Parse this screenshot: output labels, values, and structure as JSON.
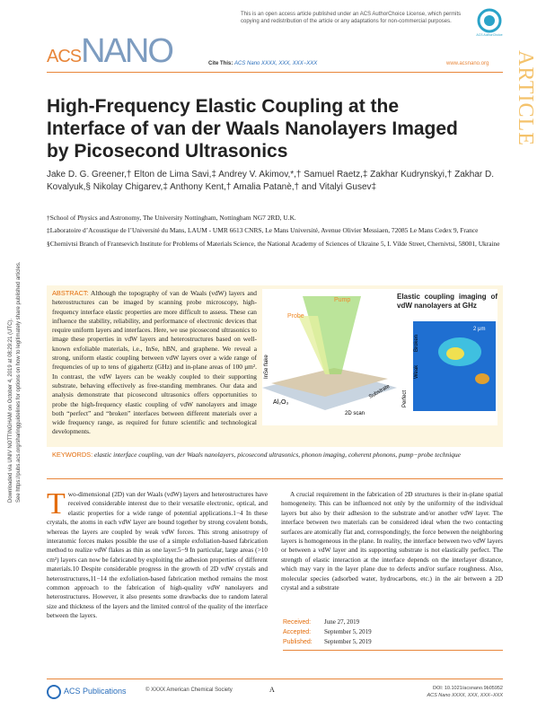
{
  "header": {
    "license_notice": "This is an open access article published under an ACS AuthorChoice License, which permits copying and redistribution of the article or any adaptations for non-commercial purposes.",
    "journal_logo_a": "ACS",
    "journal_logo_b": "NANO",
    "cite_label": "Cite This:",
    "cite": "ACS Nano XXXX, XXX, XXX−XXX",
    "website": "www.acsnano.org",
    "section": "ARTICLE",
    "badge": "ACS AuthorChoice"
  },
  "sidebar": {
    "download": "Downloaded via UNIV NOTTINGHAM on October 4, 2019 at 08:29:21 (UTC).",
    "share": "See https://pubs.acs.org/sharingguidelines for options on how to legitimately share published articles."
  },
  "article": {
    "title": "High-Frequency Elastic Coupling at the Interface of van der Waals Nanolayers Imaged by Picosecond Ultrasonics",
    "authors": "Jake D. G. Greener,† Elton de Lima Savi,‡ Andrey V. Akimov,*,† Samuel Raetz,‡ Zakhar Kudrynskyi,† Zakhar D. Kovalyuk,§ Nikolay Chigarev,‡ Anthony Kent,† Amalia Patanè,† and Vitalyi Gusev‡",
    "affiliations": [
      "†School of Physics and Astronomy, The University Nottingham, Nottingham NG7 2RD, U.K.",
      "‡Laboratoire d’Acoustique de l’Université du Mans, LAUM - UMR 6613 CNRS, Le Mans Université, Avenue Olivier Messiaen, 72085 Le Mans Cedex 9, France",
      "§Chernivtsi Branch of Frantsevich Institute for Problems of Materials Science, the National Academy of Sciences of Ukraine 5, I. Vilde Street, Chernivtsi, 58001, Ukraine"
    ],
    "abstract_label": "ABSTRACT:",
    "abstract": "Although the topography of van de Waals (vdW) layers and heterostructures can be imaged by scanning probe microscopy, high-frequency interface elastic properties are more difficult to assess. These can influence the stability, reliability, and performance of electronic devices that require uniform layers and interfaces. Here, we use picosecond ultrasonics to image these properties in vdW layers and heterostructures based on well-known exfoliable materials, i.e., InSe, hBN, and graphene. We reveal a strong, uniform elastic coupling between vdW layers over a wide range of frequencies of up to tens of gigahertz (GHz) and in-plane areas of 100 μm². In contrast, the vdW layers can be weakly coupled to their supporting substrate, behaving effectively as free-standing membranes. Our data and analysis demonstrate that picosecond ultrasonics offers opportunities to probe the high-frequency elastic coupling of vdW nanolayers and image both “perfect” and “broken” interfaces between different materials over a wide frequency range, as required for future scientific and technological developments.",
    "toc_graphic": {
      "title": "Elastic coupling imaging of vdW nanolayers at GHz",
      "pump": "Pump",
      "probe": "Probe",
      "flake": "InSe flake",
      "oxide": "Al₂O₃",
      "substrate": "Substrate",
      "scan": "2D scan",
      "scale": "2 μm",
      "perfect": "Perfect",
      "broken": "Broken",
      "weak": "Weak"
    },
    "keywords_label": "KEYWORDS:",
    "keywords": "elastic interface coupling, van der Waals nanolayers, picosecond ultrasonics, phonon imaging, coherent phonons, pump−probe technique",
    "body": [
      "Two-dimensional (2D) van der Waals (vdW) layers and heterostructures have received considerable interest due to their versatile electronic, optical, and elastic properties for a wide range of potential applications.1−4 In these crystals, the atoms in each vdW layer are bound together by strong covalent bonds, whereas the layers are coupled by weak vdW forces. This strong anisotropy of interatomic forces makes possible the use of a simple exfoliation-based fabrication method to realize vdW flakes as thin as one layer.5−9 In particular, large areas (>10 cm²) layers can now be fabricated by exploiting the adhesion properties of different materials.10 Despite considerable progress in the growth of 2D vdW crystals and heterostructures,11−14 the exfoliation-based fabrication method remains the most common approach to the fabrication of high-quality vdW nanolayers and heterostructures. However, it also presents some drawbacks due to random lateral size and thickness of the layers and the limited control of the quality of the interface between the layers.",
      "A crucial requirement in the fabrication of 2D structures is their in-plane spatial homogeneity. This can be influenced not only by the uniformity of the individual layers but also by their adhesion to the substrate and/or another vdW layer. The interface between two materials can be considered ideal when the two contacting surfaces are atomically flat and, correspondingly, the force between the neighboring layers is homogeneous in the plane. In reality, the interface between two vdW layers or between a vdW layer and its supporting substrate is not elastically perfect. The strength of elastic interaction at the interface depends on the interlayer distance, which may vary in the layer plane due to defects and/or surface roughness. Also, molecular species (adsorbed water, hydrocarbons, etc.) in the air between a 2D crystal and a substrate"
    ],
    "dates": [
      {
        "label": "Received:",
        "date": "June 27, 2019"
      },
      {
        "label": "Accepted:",
        "date": "September 5, 2019"
      },
      {
        "label": "Published:",
        "date": "September 5, 2019"
      }
    ]
  },
  "footer": {
    "publisher": "ACS Publications",
    "copyright": "© XXXX American Chemical Society",
    "page": "A",
    "doi": "DOI: 10.1021/acsnano.9b05952",
    "cite": "ACS Nano XXXX, XXX, XXX−XXX"
  }
}
